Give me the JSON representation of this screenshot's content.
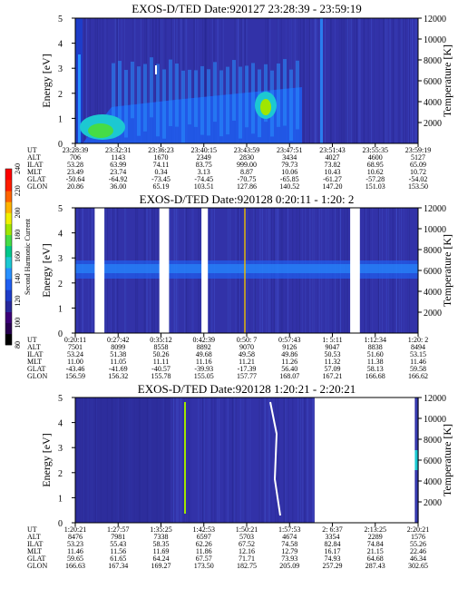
{
  "chart_data": [
    {
      "type": "heatmap",
      "title": "EXOS-D/TED   Date:920127  23:28:39 - 23:59:19",
      "ylabel": "Energy [eV]",
      "y2label": "Temperature [K]",
      "ylim": [
        0,
        5
      ],
      "y2lim": [
        0,
        12000
      ],
      "yticks": [
        "0",
        "1",
        "2",
        "3",
        "4",
        "5"
      ],
      "y2ticks": [
        "2000",
        "4000",
        "6000",
        "8000",
        "10000",
        "12000"
      ],
      "xlabels": [
        "23:28:39",
        "23:32:31",
        "23:36:23",
        "23:40:15",
        "23:43:59",
        "23:47:51",
        "23:51:43",
        "23:55:35",
        "23:59:19"
      ],
      "rows": [
        {
          "label": "UT",
          "values": [
            "23:28:39",
            "23:32:31",
            "23:36:23",
            "23:40:15",
            "23:43:59",
            "23:47:51",
            "23:51:43",
            "23:55:35",
            "23:59:19"
          ]
        },
        {
          "label": "ALT",
          "values": [
            "706",
            "1143",
            "1670",
            "2349",
            "2830",
            "3434",
            "4027",
            "4600",
            "5127"
          ]
        },
        {
          "label": "ILAT",
          "values": [
            "53.28",
            "63.99",
            "74.11",
            "83.75",
            "999.00",
            "79.73",
            "73.82",
            "68.95",
            "65.09"
          ]
        },
        {
          "label": "MLT",
          "values": [
            "23.49",
            "23.74",
            "0.34",
            "3.13",
            "8.87",
            "10.06",
            "10.43",
            "10.62",
            "10.72"
          ]
        },
        {
          "label": "GLAT",
          "values": [
            "-50.64",
            "-64.92",
            "-73.45",
            "-74.45",
            "-70.75",
            "-65.85",
            "-61.27",
            "-57.28",
            "-54.02"
          ]
        },
        {
          "label": "GLON",
          "values": [
            "20.86",
            "36.00",
            "65.19",
            "103.51",
            "127.86",
            "140.52",
            "147.20",
            "151.03",
            "153.50"
          ]
        }
      ],
      "gaps": []
    },
    {
      "type": "heatmap",
      "title": "EXOS-D/TED   Date:920128   0:20:11 - 1:20: 2",
      "ylabel": "Energy [eV]",
      "y2label": "Temperature [K]",
      "ylim": [
        0,
        5
      ],
      "y2lim": [
        0,
        12000
      ],
      "yticks": [
        "0",
        "1",
        "2",
        "3",
        "4",
        "5"
      ],
      "y2ticks": [
        "2000",
        "4000",
        "6000",
        "8000",
        "10000",
        "12000"
      ],
      "xlabels": [
        "0:20:11",
        "0:27:42",
        "0:35:12",
        "0:42:39",
        "0:50: 7",
        "0:57:43",
        "1: 5:11",
        "1:12:34",
        "1:20: 2"
      ],
      "rows": [
        {
          "label": "UT",
          "values": [
            "0:20:11",
            "0:27:42",
            "0:35:12",
            "0:42:39",
            "0:50: 7",
            "0:57:43",
            "1: 5:11",
            "1:12:34",
            "1:20: 2"
          ]
        },
        {
          "label": "ALT",
          "values": [
            "7501",
            "8099",
            "8558",
            "8892",
            "9070",
            "9126",
            "9047",
            "8838",
            "8494"
          ]
        },
        {
          "label": "ILAT",
          "values": [
            "53.24",
            "51.38",
            "50.26",
            "49.68",
            "49.58",
            "49.86",
            "50.53",
            "51.60",
            "53.15"
          ]
        },
        {
          "label": "MLT",
          "values": [
            "11.00",
            "11.05",
            "11.11",
            "11.16",
            "11.21",
            "11.26",
            "11.32",
            "11.38",
            "11.46"
          ]
        },
        {
          "label": "GLAT",
          "values": [
            "-43.46",
            "-41.69",
            "-40.57",
            "-39.93",
            "-17.39",
            "56.40",
            "57.09",
            "58.13",
            "59.58"
          ]
        },
        {
          "label": "GLON",
          "values": [
            "156.59",
            "156.32",
            "155.78",
            "155.05",
            "157.77",
            "168.07",
            "167.21",
            "166.68",
            "166.62"
          ]
        }
      ],
      "gaps": [
        [
          0.26,
          0.29
        ],
        [
          0.46,
          0.49
        ],
        [
          0.59,
          0.61
        ],
        [
          1.05,
          1.08
        ]
      ]
    },
    {
      "type": "heatmap",
      "title": "EXOS-D/TED   Date:920128   1:20:21 - 2:20:21",
      "ylabel": "Energy [eV]",
      "y2label": "Temperature [K]",
      "ylim": [
        0,
        5
      ],
      "y2lim": [
        0,
        12000
      ],
      "yticks": [
        "0",
        "1",
        "2",
        "3",
        "4",
        "5"
      ],
      "y2ticks": [
        "2000",
        "4000",
        "6000",
        "8000",
        "10000",
        "12000"
      ],
      "xlabels": [
        "1:20:21",
        "1:27:57",
        "1:35:25",
        "1:42:53",
        "1:50:21",
        "1:57:53",
        "2: 6:37",
        "2:13:25",
        "2:20:21"
      ],
      "rows": [
        {
          "label": "UT",
          "values": [
            "1:20:21",
            "1:27:57",
            "1:35:25",
            "1:42:53",
            "1:50:21",
            "1:57:53",
            "2: 6:37",
            "2:13:25",
            "2:20:21"
          ]
        },
        {
          "label": "ALT",
          "values": [
            "8476",
            "7981",
            "7338",
            "6597",
            "5703",
            "4674",
            "3354",
            "2289",
            "1576"
          ]
        },
        {
          "label": "ILAT",
          "values": [
            "53.23",
            "55.43",
            "58.35",
            "62.26",
            "67.52",
            "74.58",
            "82.84",
            "74.84",
            "55.26"
          ]
        },
        {
          "label": "MLT",
          "values": [
            "11.46",
            "11.56",
            "11.69",
            "11.86",
            "12.16",
            "12.79",
            "16.17",
            "21.15",
            "22.46"
          ]
        },
        {
          "label": "GLAT",
          "values": [
            "59.65",
            "61.65",
            "64.24",
            "67.57",
            "71.71",
            "73.93",
            "74.93",
            "64.68",
            "46.34"
          ]
        },
        {
          "label": "GLON",
          "values": [
            "166.63",
            "167.34",
            "169.27",
            "173.50",
            "182.75",
            "205.09",
            "257.29",
            "287.43",
            "302.65"
          ]
        }
      ],
      "gaps": [
        [
          0.94,
          1.25
        ]
      ]
    }
  ],
  "colorbar": {
    "label": "Second Harmonic Current",
    "ticks": [
      "80",
      "100",
      "120",
      "140",
      "160",
      "180",
      "200",
      "220",
      "240"
    ],
    "colors": [
      "#000000",
      "#280050",
      "#3c0078",
      "#28289b",
      "#1e3cc8",
      "#1f5ef0",
      "#2890ff",
      "#1cc8d2",
      "#00c88c",
      "#46dc46",
      "#a0e600",
      "#f0f000",
      "#ffb400",
      "#ff6400",
      "#ff1e00",
      "#ff0000"
    ]
  },
  "colors": {
    "background": "#3232a8"
  }
}
